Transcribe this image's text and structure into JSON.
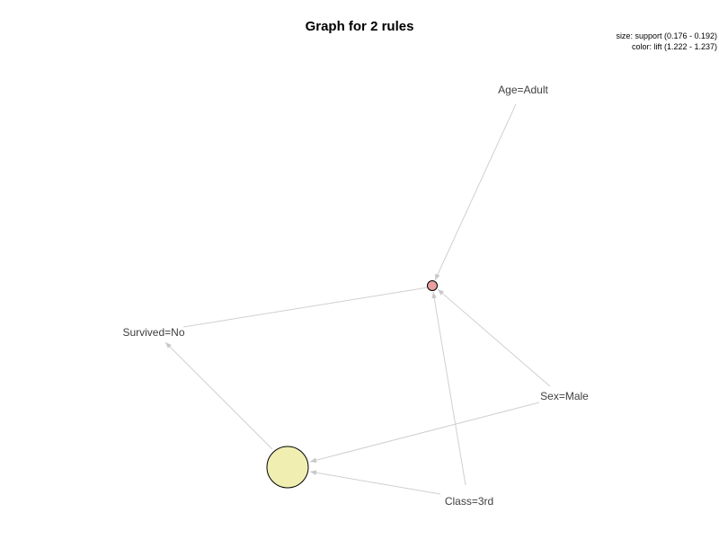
{
  "title": "Graph for 2 rules",
  "legend": {
    "size_line": "size: support (0.176 - 0.192)",
    "color_line": "color: lift (1.222 - 1.237)"
  },
  "items": {
    "age_adult": "Age=Adult",
    "survived_no": "Survived=No",
    "sex_male": "Sex=Male",
    "class_3rd": "Class=3rd"
  },
  "rules": {
    "rule_small": {
      "color": "#e8a0a0"
    },
    "rule_large": {
      "color": "#f0eeb0"
    }
  },
  "colors": {
    "edge": "#d0d0d0",
    "label": "#404040",
    "arrowhead": "#c8c8c8"
  }
}
